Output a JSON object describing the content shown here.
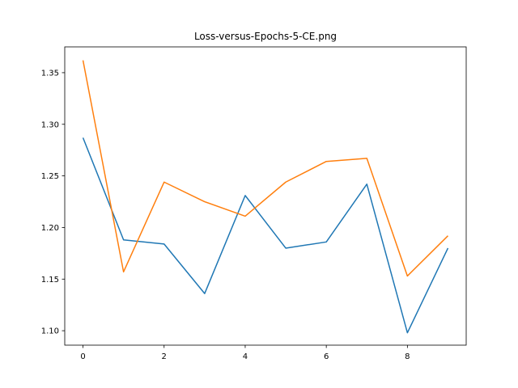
{
  "chart_data": {
    "type": "line",
    "title": "Loss-versus-Epochs-5-CE.png",
    "xlabel": "",
    "ylabel": "",
    "x": [
      0,
      1,
      2,
      3,
      4,
      5,
      6,
      7,
      8,
      9
    ],
    "xlim": [
      -0.45,
      9.45
    ],
    "ylim": [
      1.086,
      1.375
    ],
    "xticks": [
      0,
      2,
      4,
      6,
      8
    ],
    "xtick_labels": [
      "0",
      "2",
      "4",
      "6",
      "8"
    ],
    "yticks": [
      1.1,
      1.15,
      1.2,
      1.25,
      1.3,
      1.35
    ],
    "ytick_labels": [
      "1.10",
      "1.15",
      "1.20",
      "1.25",
      "1.30",
      "1.35"
    ],
    "grid": false,
    "legend": "none",
    "series": [
      {
        "color": "#1f77b4",
        "values": [
          1.287,
          1.188,
          1.184,
          1.136,
          1.231,
          1.18,
          1.186,
          1.242,
          1.098,
          1.18
        ]
      },
      {
        "color": "#ff7f0e",
        "values": [
          1.362,
          1.157,
          1.244,
          1.225,
          1.211,
          1.244,
          1.264,
          1.267,
          1.153,
          1.192
        ]
      }
    ]
  }
}
